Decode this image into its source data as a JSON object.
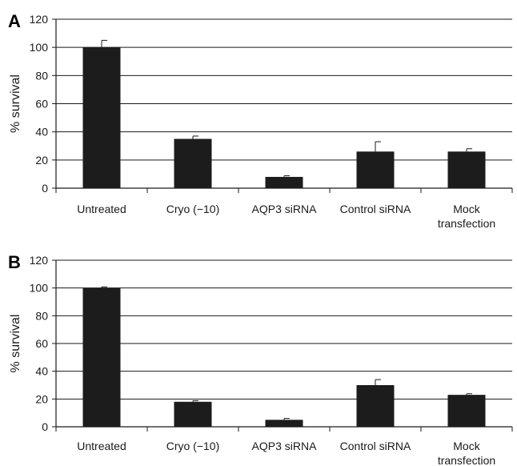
{
  "chart_data": [
    {
      "type": "bar",
      "panel_label": "A",
      "ylabel": "% survival",
      "ylim": [
        0,
        120
      ],
      "yticks": [
        "0",
        "20",
        "40",
        "60",
        "80",
        "100",
        "120"
      ],
      "grid": true,
      "categories": [
        [
          "Untreated"
        ],
        [
          "Cryo (−10)"
        ],
        [
          "AQP3 siRNA"
        ],
        [
          "Control siRNA"
        ],
        [
          "Mock",
          "transfection"
        ]
      ],
      "values": [
        100,
        35,
        8,
        26,
        26
      ],
      "errors": [
        5,
        2,
        0.8,
        7,
        2
      ],
      "bar_color": "#1c1c1c"
    },
    {
      "type": "bar",
      "panel_label": "B",
      "ylabel": "% survival",
      "ylim": [
        0,
        120
      ],
      "yticks": [
        "0",
        "20",
        "40",
        "60",
        "80",
        "100",
        "120"
      ],
      "grid": true,
      "categories": [
        [
          "Untreated"
        ],
        [
          "Cryo (−10)"
        ],
        [
          "AQP3 siRNA"
        ],
        [
          "Control siRNA"
        ],
        [
          "Mock",
          "transfection"
        ]
      ],
      "values": [
        100,
        18,
        5,
        30,
        23
      ],
      "errors": [
        0.8,
        0.8,
        1,
        4,
        0.8
      ],
      "bar_color": "#1c1c1c"
    }
  ]
}
